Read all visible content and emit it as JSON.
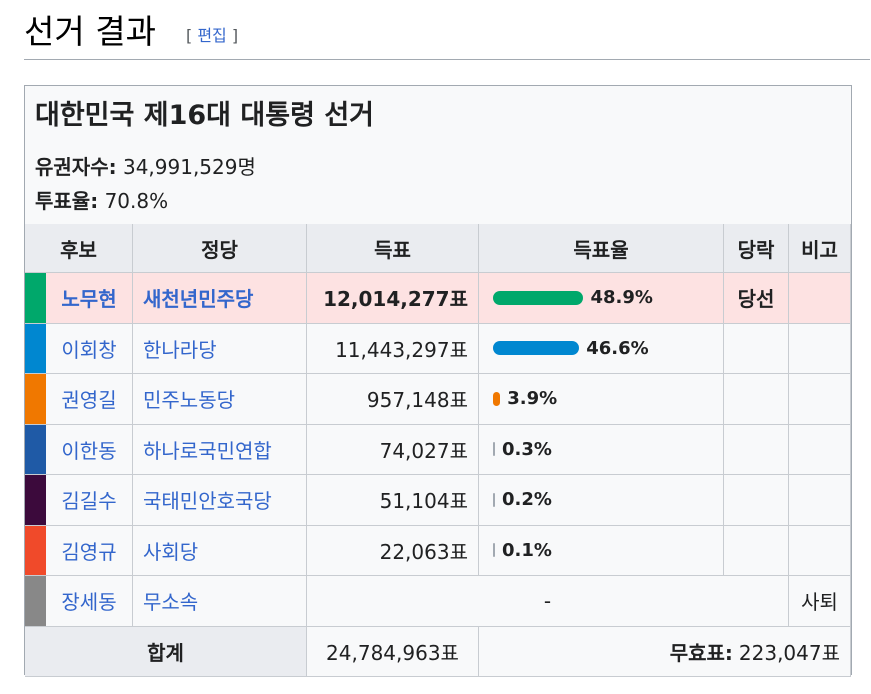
{
  "heading": {
    "title": "선거 결과",
    "edit_open": "[ ",
    "edit_label": "편집",
    "edit_close": " ]"
  },
  "box": {
    "title": "대한민국 제16대 대통령 선거",
    "electorate_label": "유권자수:",
    "electorate_value": "34,991,529명",
    "turnout_label": "투표율:",
    "turnout_value": "70.8%"
  },
  "table": {
    "headers": [
      "후보",
      "정당",
      "득표",
      "득표율",
      "당락",
      "비고"
    ],
    "rows": [
      {
        "candidate": "노무현",
        "party": "새천년민주당",
        "votes": "12,014,277표",
        "percent": "48.9%",
        "share": 48.9,
        "result": "당선",
        "note": "",
        "color": "#00a86b",
        "winner": true
      },
      {
        "candidate": "이회창",
        "party": "한나라당",
        "votes": "11,443,297표",
        "percent": "46.6%",
        "share": 46.6,
        "result": "",
        "note": "",
        "color": "#0087d0",
        "winner": false
      },
      {
        "candidate": "권영길",
        "party": "민주노동당",
        "votes": "957,148표",
        "percent": "3.9%",
        "share": 3.9,
        "result": "",
        "note": "",
        "color": "#f07800",
        "winner": false
      },
      {
        "candidate": "이한동",
        "party": "하나로국민연합",
        "votes": "74,027표",
        "percent": "0.3%",
        "share": 0.3,
        "result": "",
        "note": "",
        "color": "#1f5aa6",
        "winner": false
      },
      {
        "candidate": "김길수",
        "party": "국태민안호국당",
        "votes": "51,104표",
        "percent": "0.2%",
        "share": 0.2,
        "result": "",
        "note": "",
        "color": "#3c0a3c",
        "winner": false
      },
      {
        "candidate": "김영규",
        "party": "사회당",
        "votes": "22,063표",
        "percent": "0.1%",
        "share": 0.1,
        "result": "",
        "note": "",
        "color": "#f04a2a",
        "winner": false
      },
      {
        "candidate": "장세동",
        "party": "무소속",
        "dash": "-",
        "note": "사퇴",
        "color": "#888888",
        "winner": false
      }
    ],
    "footer": {
      "total_label": "합계",
      "total_votes": "24,784,963표",
      "invalid_label": "무효표:",
      "invalid_votes": "223,047표"
    }
  }
}
